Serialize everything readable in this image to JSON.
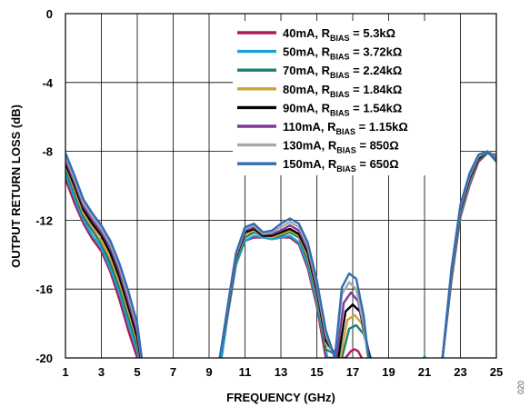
{
  "chart_data": {
    "type": "line",
    "title": "",
    "xlabel": "FREQUENCY (GHz)",
    "ylabel": "OUTPUT RETURN LOSS (dB)",
    "xlim": [
      1,
      25
    ],
    "ylim": [
      -20,
      0
    ],
    "xticks": [
      1,
      3,
      5,
      7,
      9,
      11,
      13,
      15,
      17,
      19,
      21,
      23,
      25
    ],
    "yticks": [
      0,
      -4,
      -8,
      -12,
      -16,
      -20
    ],
    "grid": true,
    "legend_position": "top-right",
    "figure_id": "020",
    "series": [
      {
        "name": "40mA, R",
        "sub": "BIAS",
        "value": " = 5.3kΩ",
        "color": "#b0195a",
        "x": [
          1,
          1.5,
          2,
          2.5,
          3,
          3.5,
          4,
          4.5,
          5,
          5.5,
          9.6,
          10,
          10.5,
          11,
          11.5,
          12,
          12.5,
          13,
          13.5,
          14,
          14.5,
          15,
          15.5,
          16.6,
          16.9,
          17.1,
          17.3,
          17.5,
          17.7,
          21.9,
          22,
          22.5,
          23,
          23.5,
          24,
          24.5,
          25
        ],
        "y": [
          -9.6,
          -11,
          -12.2,
          -13.1,
          -13.8,
          -15,
          -16.6,
          -18.4,
          -20,
          -22,
          -20,
          -17.5,
          -14.5,
          -13.2,
          -13,
          -13,
          -13.1,
          -13,
          -13,
          -13.4,
          -14.8,
          -17,
          -20,
          -20,
          -19.6,
          -19.5,
          -19.6,
          -20,
          -22,
          -21,
          -20,
          -15.5,
          -11.8,
          -10,
          -8.6,
          -8.1,
          -8.2
        ]
      },
      {
        "name": "50mA, R",
        "sub": "BIAS",
        "value": " = 3.72kΩ",
        "color": "#1ba3d4",
        "x": [
          1,
          1.5,
          2,
          2.5,
          3,
          3.5,
          4,
          4.5,
          5,
          5.5,
          9.7,
          10,
          10.5,
          11,
          11.5,
          12,
          12.5,
          13,
          13.5,
          14,
          14.5,
          15,
          15.3,
          15.6,
          16.5,
          20.8,
          21,
          21.2,
          22,
          22.5,
          23,
          23.5,
          24,
          24.5,
          25
        ],
        "y": [
          -9.3,
          -10.7,
          -12,
          -12.9,
          -13.6,
          -14.8,
          -16.2,
          -18,
          -19.6,
          -22,
          -20,
          -17.8,
          -14.6,
          -13.2,
          -12.9,
          -13,
          -13.1,
          -13,
          -12.9,
          -13.3,
          -14.6,
          -16.8,
          -18.5,
          -20,
          -22,
          -20.3,
          -19.9,
          -20.2,
          -20,
          -15.4,
          -11.7,
          -9.9,
          -8.5,
          -8,
          -8.3
        ]
      },
      {
        "name": "70mA, R",
        "sub": "BIAS",
        "value": " = 2.24kΩ",
        "color": "#1a7f74",
        "x": [
          1,
          1.5,
          2,
          2.5,
          3,
          3.5,
          4,
          4.5,
          5,
          5.5,
          9.6,
          10,
          10.5,
          11,
          11.5,
          12,
          12.5,
          13,
          13.5,
          14,
          14.5,
          15,
          15.5,
          16.4,
          16.8,
          17.2,
          17.6,
          18,
          18.2,
          22,
          22.5,
          23,
          23.5,
          24,
          24.5,
          25
        ],
        "y": [
          -9,
          -10.4,
          -11.8,
          -12.6,
          -13.4,
          -14.5,
          -15.9,
          -17.6,
          -19.3,
          -22,
          -20,
          -17.6,
          -14.4,
          -13,
          -12.7,
          -12.9,
          -13,
          -12.9,
          -12.7,
          -13,
          -14.3,
          -16.5,
          -19.5,
          -20,
          -18.3,
          -18.1,
          -18.6,
          -20,
          -22,
          -20,
          -15.3,
          -11.6,
          -9.8,
          -8.5,
          -8.1,
          -8.4
        ]
      },
      {
        "name": "80mA, R",
        "sub": "BIAS",
        "value": " = 1.84kΩ",
        "color": "#c9a33c",
        "x": [
          1,
          1.5,
          2,
          2.5,
          3,
          3.5,
          4,
          4.5,
          5,
          5.5,
          9.6,
          10,
          10.5,
          11,
          11.5,
          12,
          12.5,
          13,
          13.5,
          14,
          14.5,
          15,
          15.5,
          16.3,
          16.7,
          17.1,
          17.5,
          17.9,
          18.3,
          22,
          22.5,
          23,
          23.5,
          24,
          24.5,
          25
        ],
        "y": [
          -8.8,
          -10.2,
          -11.6,
          -12.4,
          -13.2,
          -14.2,
          -15.6,
          -17.3,
          -19,
          -22,
          -20,
          -17.6,
          -14.3,
          -12.8,
          -12.6,
          -12.9,
          -13,
          -12.8,
          -12.6,
          -12.9,
          -14.1,
          -16.3,
          -19.2,
          -20,
          -17.8,
          -17.5,
          -18,
          -19.8,
          -22,
          -20,
          -15.2,
          -11.5,
          -9.7,
          -8.4,
          -8,
          -8.4
        ]
      },
      {
        "name": "90mA, R",
        "sub": "BIAS",
        "value": " = 1.54kΩ",
        "color": "#000000",
        "x": [
          1,
          1.5,
          2,
          2.5,
          3,
          3.5,
          4,
          4.5,
          5,
          5.5,
          9.6,
          10,
          10.5,
          11,
          11.5,
          12,
          12.5,
          13,
          13.5,
          14,
          14.5,
          15,
          15.5,
          16.2,
          16.6,
          17,
          17.4,
          17.8,
          18.3,
          22,
          22.5,
          23,
          23.5,
          24,
          24.5,
          25
        ],
        "y": [
          -8.7,
          -10,
          -11.4,
          -12.2,
          -12.9,
          -13.9,
          -15.3,
          -17,
          -18.8,
          -22,
          -20,
          -17.5,
          -14.2,
          -12.7,
          -12.5,
          -12.9,
          -12.9,
          -12.7,
          -12.5,
          -12.8,
          -13.9,
          -16.1,
          -19,
          -20,
          -17.3,
          -16.9,
          -17.3,
          -19.2,
          -22,
          -20,
          -15.1,
          -11.4,
          -9.6,
          -8.4,
          -8,
          -8.5
        ]
      },
      {
        "name": "110mA, R",
        "sub": "BIAS",
        "value": " = 1.15kΩ",
        "color": "#7b3b95",
        "x": [
          1,
          1.5,
          2,
          2.5,
          3,
          3.5,
          4,
          4.5,
          5,
          5.5,
          9.6,
          10,
          10.5,
          11,
          11.5,
          12,
          12.5,
          13,
          13.5,
          14,
          14.5,
          15,
          15.5,
          16.1,
          16.5,
          16.9,
          17.3,
          17.7,
          18.2,
          22,
          22.5,
          23,
          23.5,
          24,
          24.5,
          25
        ],
        "y": [
          -8.5,
          -9.8,
          -11.2,
          -12,
          -12.7,
          -13.6,
          -15,
          -16.7,
          -18.5,
          -22,
          -20,
          -17.4,
          -14.1,
          -12.6,
          -12.4,
          -12.8,
          -12.8,
          -12.6,
          -12.3,
          -12.6,
          -13.7,
          -15.9,
          -18.8,
          -20,
          -16.8,
          -16.2,
          -16.7,
          -18.6,
          -22,
          -20,
          -15,
          -11.3,
          -9.5,
          -8.3,
          -8,
          -8.5
        ]
      },
      {
        "name": "130mA, R",
        "sub": "BIAS",
        "value": " = 850Ω",
        "color": "#a7a9ac",
        "x": [
          1,
          1.5,
          2,
          2.5,
          3,
          3.5,
          4,
          4.5,
          5,
          5.5,
          9.6,
          10,
          10.5,
          11,
          11.5,
          12,
          12.5,
          13,
          13.5,
          14,
          14.5,
          15,
          15.5,
          16,
          16.4,
          16.8,
          17.2,
          17.6,
          18.1,
          22,
          22.5,
          23,
          23.5,
          24,
          24.5,
          25
        ],
        "y": [
          -8.3,
          -9.6,
          -11,
          -11.8,
          -12.5,
          -13.4,
          -14.7,
          -16.4,
          -18.2,
          -22,
          -20,
          -17.3,
          -14,
          -12.5,
          -12.3,
          -12.8,
          -12.7,
          -12.4,
          -12.1,
          -12.4,
          -13.5,
          -15.7,
          -18.6,
          -20,
          -16.3,
          -15.6,
          -16,
          -18,
          -22,
          -20,
          -14.9,
          -11.2,
          -9.4,
          -8.3,
          -8,
          -8.6
        ]
      },
      {
        "name": "150mA, R",
        "sub": "BIAS",
        "value": " = 650Ω",
        "color": "#2f6db5",
        "x": [
          1,
          1.5,
          2,
          2.5,
          3,
          3.5,
          4,
          4.5,
          5,
          5.5,
          9.6,
          10,
          10.5,
          11,
          11.5,
          12,
          12.5,
          13,
          13.5,
          14,
          14.5,
          15,
          15.5,
          16,
          16.4,
          16.8,
          17.2,
          17.6,
          18.1,
          22,
          22.5,
          23,
          23.5,
          24,
          24.5,
          25
        ],
        "y": [
          -8.1,
          -9.4,
          -10.8,
          -11.6,
          -12.3,
          -13.2,
          -14.5,
          -16.1,
          -18,
          -22,
          -20,
          -17.2,
          -13.9,
          -12.4,
          -12.2,
          -12.7,
          -12.6,
          -12.2,
          -11.9,
          -12.2,
          -13.3,
          -15.5,
          -18.4,
          -20,
          -15.9,
          -15.1,
          -15.4,
          -17.5,
          -22,
          -20,
          -14.8,
          -11.1,
          -9.3,
          -8.2,
          -8,
          -8.6
        ]
      }
    ]
  }
}
